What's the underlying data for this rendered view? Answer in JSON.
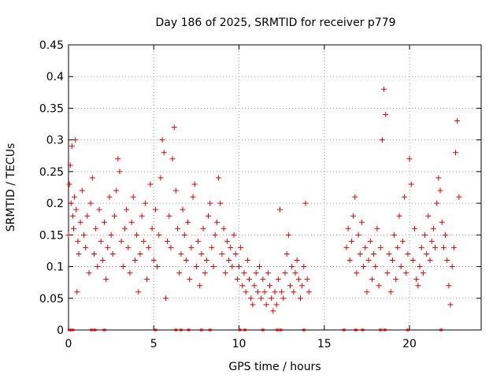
{
  "chart_data": {
    "type": "scatter",
    "title": "Day 186 of 2025, SRMTID for receiver p779",
    "xlabel": "GPS time / hours",
    "ylabel": "SRMTID / TECUs",
    "xlim": [
      0,
      24.2
    ],
    "ylim": [
      0,
      0.45
    ],
    "x_ticks": [
      0,
      5,
      10,
      15,
      20
    ],
    "y_ticks": [
      0,
      0.05,
      0.1,
      0.15,
      0.2,
      0.25,
      0.3,
      0.35,
      0.4,
      0.45
    ],
    "y_tick_labels": [
      "0",
      "0.05",
      "0.1",
      "0.15",
      "0.2",
      "0.25",
      "0.3",
      "0.35",
      "0.4",
      "0.45"
    ],
    "grid": true,
    "marker": "+",
    "color": "#e00000",
    "series": [
      {
        "name": "SRMTID",
        "points": [
          [
            0.0,
            0.15
          ],
          [
            0.05,
            0.23
          ],
          [
            0.1,
            0.26
          ],
          [
            0.15,
            0.2
          ],
          [
            0.2,
            0.29
          ],
          [
            0.25,
            0.18
          ],
          [
            0.3,
            0.16
          ],
          [
            0.35,
            0.21
          ],
          [
            0.4,
            0.3
          ],
          [
            0.45,
            0.19
          ],
          [
            0.5,
            0.06
          ],
          [
            0.55,
            0.14
          ],
          [
            0.6,
            0.12
          ],
          [
            0.7,
            0.17
          ],
          [
            0.8,
            0.22
          ],
          [
            0.9,
            0.15
          ],
          [
            1.0,
            0.13
          ],
          [
            1.1,
            0.18
          ],
          [
            1.2,
            0.09
          ],
          [
            1.3,
            0.2
          ],
          [
            1.4,
            0.24
          ],
          [
            1.5,
            0.12
          ],
          [
            1.6,
            0.16
          ],
          [
            1.7,
            0.1
          ],
          [
            1.8,
            0.19
          ],
          [
            1.9,
            0.14
          ],
          [
            2.0,
            0.11
          ],
          [
            2.1,
            0.17
          ],
          [
            2.2,
            0.08
          ],
          [
            2.3,
            0.13
          ],
          [
            2.4,
            0.21
          ],
          [
            2.5,
            0.15
          ],
          [
            2.6,
            0.12
          ],
          [
            2.7,
            0.18
          ],
          [
            2.8,
            0.22
          ],
          [
            2.9,
            0.27
          ],
          [
            3.0,
            0.25
          ],
          [
            3.1,
            0.14
          ],
          [
            3.2,
            0.1
          ],
          [
            3.3,
            0.16
          ],
          [
            3.4,
            0.19
          ],
          [
            3.5,
            0.13
          ],
          [
            3.6,
            0.09
          ],
          [
            3.7,
            0.17
          ],
          [
            3.8,
            0.21
          ],
          [
            3.9,
            0.11
          ],
          [
            4.0,
            0.15
          ],
          [
            4.1,
            0.06
          ],
          [
            4.2,
            0.12
          ],
          [
            4.3,
            0.18
          ],
          [
            4.4,
            0.14
          ],
          [
            4.5,
            0.2
          ],
          [
            4.6,
            0.08
          ],
          [
            4.7,
            0.13
          ],
          [
            4.8,
            0.23
          ],
          [
            4.9,
            0.16
          ],
          [
            5.0,
            0.11
          ],
          [
            5.1,
            0.19
          ],
          [
            5.2,
            0.1
          ],
          [
            5.3,
            0.15
          ],
          [
            5.4,
            0.24
          ],
          [
            5.5,
            0.3
          ],
          [
            5.6,
            0.28
          ],
          [
            5.7,
            0.05
          ],
          [
            5.8,
            0.14
          ],
          [
            5.9,
            0.18
          ],
          [
            6.0,
            0.13
          ],
          [
            6.1,
            0.27
          ],
          [
            6.2,
            0.32
          ],
          [
            6.3,
            0.22
          ],
          [
            6.4,
            0.16
          ],
          [
            6.5,
            0.09
          ],
          [
            6.6,
            0.12
          ],
          [
            6.7,
            0.19
          ],
          [
            6.8,
            0.15
          ],
          [
            6.9,
            0.11
          ],
          [
            7.0,
            0.17
          ],
          [
            7.1,
            0.08
          ],
          [
            7.2,
            0.13
          ],
          [
            7.3,
            0.21
          ],
          [
            7.4,
            0.23
          ],
          [
            7.5,
            0.1
          ],
          [
            7.6,
            0.14
          ],
          [
            7.7,
            0.07
          ],
          [
            7.8,
            0.12
          ],
          [
            7.9,
            0.16
          ],
          [
            8.0,
            0.09
          ],
          [
            8.1,
            0.11
          ],
          [
            8.2,
            0.18
          ],
          [
            8.3,
            0.2
          ],
          [
            8.4,
            0.13
          ],
          [
            8.5,
            0.1
          ],
          [
            8.6,
            0.15
          ],
          [
            8.7,
            0.17
          ],
          [
            8.8,
            0.24
          ],
          [
            8.9,
            0.2
          ],
          [
            9.0,
            0.12
          ],
          [
            9.1,
            0.16
          ],
          [
            9.2,
            0.09
          ],
          [
            9.3,
            0.14
          ],
          [
            9.4,
            0.11
          ],
          [
            9.5,
            0.13
          ],
          [
            9.6,
            0.1
          ],
          [
            9.7,
            0.15
          ],
          [
            9.8,
            0.12
          ],
          [
            9.9,
            0.08
          ],
          [
            10.0,
            0.1
          ],
          [
            10.1,
            0.13
          ],
          [
            10.2,
            0.07
          ],
          [
            10.3,
            0.09
          ],
          [
            10.4,
            0.06
          ],
          [
            10.5,
            0.11
          ],
          [
            10.6,
            0.08
          ],
          [
            10.7,
            0.05
          ],
          [
            10.8,
            0.04
          ],
          [
            10.9,
            0.07
          ],
          [
            11.0,
            0.09
          ],
          [
            11.1,
            0.06
          ],
          [
            11.2,
            0.1
          ],
          [
            11.3,
            0.05
          ],
          [
            11.4,
            0.08
          ],
          [
            11.5,
            0.06
          ],
          [
            11.6,
            0.04
          ],
          [
            11.7,
            0.09
          ],
          [
            11.8,
            0.07
          ],
          [
            11.9,
            0.05
          ],
          [
            12.0,
            0.03
          ],
          [
            12.1,
            0.06
          ],
          [
            12.2,
            0.04
          ],
          [
            12.3,
            0.08
          ],
          [
            12.4,
            0.19
          ],
          [
            12.5,
            0.06
          ],
          [
            12.6,
            0.05
          ],
          [
            12.7,
            0.09
          ],
          [
            12.8,
            0.12
          ],
          [
            12.9,
            0.15
          ],
          [
            13.0,
            0.07
          ],
          [
            13.1,
            0.1
          ],
          [
            13.2,
            0.06
          ],
          [
            13.3,
            0.09
          ],
          [
            13.4,
            0.11
          ],
          [
            13.5,
            0.08
          ],
          [
            13.6,
            0.05
          ],
          [
            13.7,
            0.07
          ],
          [
            13.8,
            0.1
          ],
          [
            13.9,
            0.2
          ],
          [
            14.0,
            0.08
          ],
          [
            14.1,
            0.06
          ],
          [
            16.3,
            0.13
          ],
          [
            16.4,
            0.16
          ],
          [
            16.5,
            0.11
          ],
          [
            16.6,
            0.14
          ],
          [
            16.7,
            0.18
          ],
          [
            16.8,
            0.21
          ],
          [
            16.9,
            0.09
          ],
          [
            17.0,
            0.15
          ],
          [
            17.1,
            0.12
          ],
          [
            17.2,
            0.17
          ],
          [
            17.3,
            0.1
          ],
          [
            17.4,
            0.13
          ],
          [
            17.5,
            0.06
          ],
          [
            17.6,
            0.11
          ],
          [
            17.7,
            0.14
          ],
          [
            17.8,
            0.08
          ],
          [
            17.9,
            0.12
          ],
          [
            18.0,
            0.1
          ],
          [
            18.1,
            0.16
          ],
          [
            18.2,
            0.07
          ],
          [
            18.3,
            0.13
          ],
          [
            18.4,
            0.3
          ],
          [
            18.5,
            0.38
          ],
          [
            18.6,
            0.34
          ],
          [
            18.7,
            0.09
          ],
          [
            18.8,
            0.12
          ],
          [
            18.9,
            0.06
          ],
          [
            19.0,
            0.11
          ],
          [
            19.1,
            0.15
          ],
          [
            19.2,
            0.08
          ],
          [
            19.3,
            0.13
          ],
          [
            19.4,
            0.18
          ],
          [
            19.5,
            0.1
          ],
          [
            19.6,
            0.14
          ],
          [
            19.7,
            0.21
          ],
          [
            19.8,
            0.09
          ],
          [
            19.9,
            0.12
          ],
          [
            20.0,
            0.27
          ],
          [
            20.1,
            0.23
          ],
          [
            20.2,
            0.11
          ],
          [
            20.3,
            0.16
          ],
          [
            20.4,
            0.08
          ],
          [
            20.5,
            0.07
          ],
          [
            20.6,
            0.1
          ],
          [
            20.7,
            0.13
          ],
          [
            20.8,
            0.09
          ],
          [
            20.9,
            0.15
          ],
          [
            21.0,
            0.12
          ],
          [
            21.1,
            0.18
          ],
          [
            21.2,
            0.11
          ],
          [
            21.3,
            0.14
          ],
          [
            21.4,
            0.16
          ],
          [
            21.5,
            0.13
          ],
          [
            21.6,
            0.2
          ],
          [
            21.7,
            0.24
          ],
          [
            21.8,
            0.22
          ],
          [
            21.9,
            0.17
          ],
          [
            22.0,
            0.13
          ],
          [
            22.1,
            0.15
          ],
          [
            22.2,
            0.11
          ],
          [
            22.3,
            0.07
          ],
          [
            22.4,
            0.04
          ],
          [
            22.5,
            0.1
          ],
          [
            22.6,
            0.13
          ],
          [
            22.7,
            0.28
          ],
          [
            22.8,
            0.33
          ],
          [
            22.9,
            0.21
          ]
        ]
      }
    ],
    "baseline_markers_x": [
      0.05,
      0.15,
      0.25,
      1.35,
      1.55,
      2.1,
      5.1,
      6.3,
      6.6,
      7.05,
      7.8,
      8.3,
      10.05,
      10.35,
      11.4,
      12.25,
      12.45,
      13.8,
      16.15,
      16.85,
      17.25,
      18.3,
      18.55,
      19.9,
      21.85
    ]
  }
}
